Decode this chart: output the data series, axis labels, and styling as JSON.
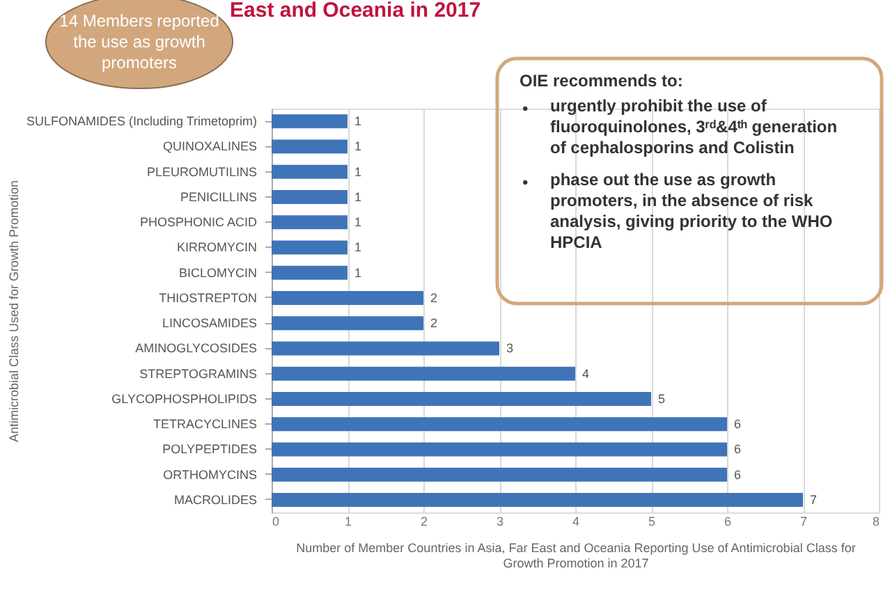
{
  "chart_data": {
    "type": "bar",
    "orientation": "horizontal",
    "title": "East and Oceania in 2017",
    "xlabel": "Number of Member Countries in Asia, Far East and Oceania Reporting Use of Antimicrobial Class for Growth Promotion in 2017",
    "ylabel": "Antimicrobial Class Used for Growth Promotion",
    "categories": [
      "SULFONAMIDES (Including Trimetoprim)",
      "QUINOXALINES",
      "PLEUROMUTILINS",
      "PENICILLINS",
      "PHOSPHONIC ACID",
      "KIRROMYCIN",
      "BICLOMYCIN",
      "THIOSTREPTON",
      "LINCOSAMIDES",
      "AMINOGLYCOSIDES",
      "STREPTOGRAMINS",
      "GLYCOPHOSPHOLIPIDS",
      "TETRACYCLINES",
      "POLYPEPTIDES",
      "ORTHOMYCINS",
      "MACROLIDES"
    ],
    "values": [
      1,
      1,
      1,
      1,
      1,
      1,
      1,
      2,
      2,
      3,
      4,
      5,
      6,
      6,
      6,
      7
    ],
    "color": "#3f74b8",
    "data_labels": true,
    "xlim": [
      0,
      8
    ],
    "xticks": [
      0,
      1,
      2,
      3,
      4,
      5,
      6,
      7,
      8
    ],
    "grid": "x",
    "annotations": [
      "14 Members reported the use as growth promoters",
      "OIE recommends to:",
      "• urgently prohibit the use of fluoroquinolones, 3ʳᵈ&4ᵗʰ generation of cephalosporins and Colistin",
      "• phase out the use as growth promoters, in the absence of risk analysis, giving priority to the WHO HPCIA"
    ]
  }
}
